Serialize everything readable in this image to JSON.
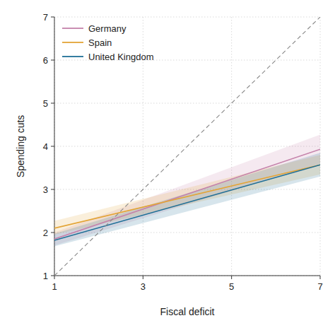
{
  "chart_data": {
    "type": "line",
    "x_label": "Fiscal deficit",
    "y_label": "Spending cuts",
    "x": [
      1,
      7
    ],
    "series": [
      {
        "name": "Germany",
        "color": "#c583ab",
        "values": [
          1.85,
          3.93
        ],
        "lower": [
          1.7,
          3.6
        ],
        "upper": [
          2.0,
          4.27
        ]
      },
      {
        "name": "Spain",
        "color": "#e3a436",
        "values": [
          2.1,
          3.57
        ],
        "lower": [
          1.95,
          3.35
        ],
        "upper": [
          2.27,
          3.8
        ]
      },
      {
        "name": "United Kingdom",
        "color": "#1f6f97",
        "values": [
          1.82,
          3.57
        ],
        "lower": [
          1.68,
          3.3
        ],
        "upper": [
          1.97,
          3.85
        ]
      },
      {
        "color": "#888888",
        "line_style": "dashed",
        "values": [
          1,
          7
        ]
      }
    ],
    "xlim": [
      1,
      7
    ],
    "xticks": [
      1,
      3,
      5,
      7
    ],
    "ylim": [
      1,
      7
    ],
    "yticks": [
      1,
      2,
      3,
      4,
      5,
      6,
      7
    ],
    "grid": true,
    "legend": "top-left"
  }
}
